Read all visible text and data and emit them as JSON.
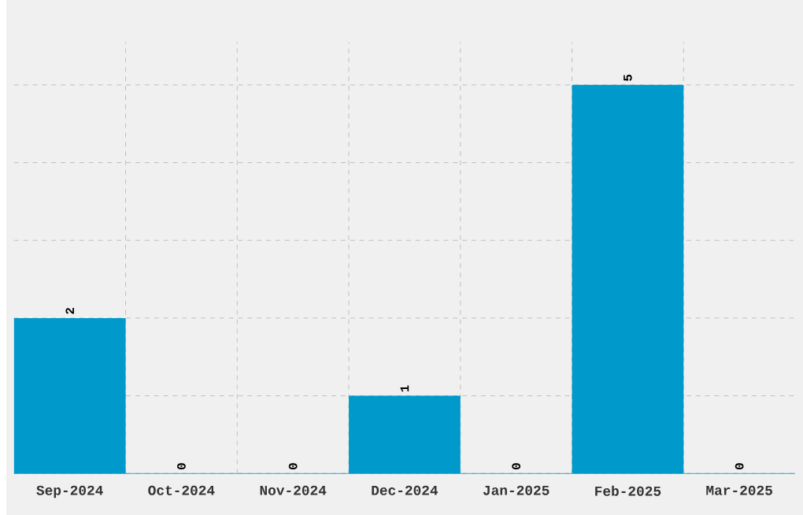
{
  "chart_data": {
    "type": "bar",
    "categories": [
      "Sep-2024",
      "Oct-2024",
      "Nov-2024",
      "Dec-2024",
      "Jan-2025",
      "Feb-2025",
      "Mar-2025"
    ],
    "values": [
      2,
      0,
      0,
      1,
      0,
      5,
      0
    ],
    "color": "#0099cc",
    "ylim": [
      0,
      5.55
    ],
    "tick_labels": "x",
    "grid": true,
    "data_labels": true
  }
}
